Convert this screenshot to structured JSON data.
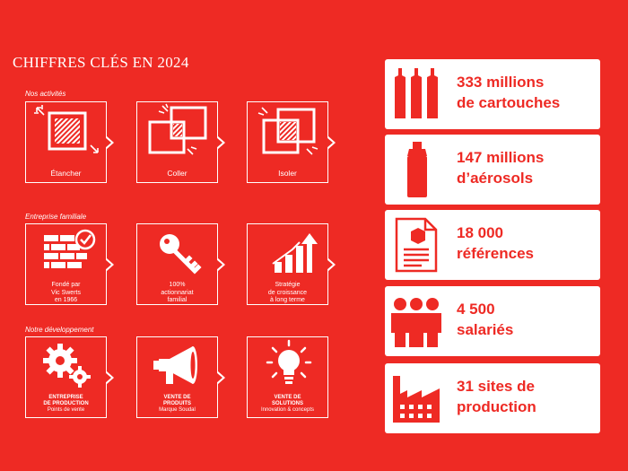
{
  "title": "CHIFFRES CLÉS EN 2024",
  "sections": [
    {
      "label": "Nos activités",
      "tiles": [
        {
          "icon": "sealing-square-icon",
          "lines": [
            "Étancher"
          ]
        },
        {
          "icon": "bonding-squares-icon",
          "lines": [
            "Coller"
          ]
        },
        {
          "icon": "insulating-square-icon",
          "lines": [
            "Isoler"
          ]
        }
      ]
    },
    {
      "label": "Entreprise familiale",
      "tiles": [
        {
          "icon": "brick-wall-check-icon",
          "lines": [
            "Fondé par",
            "Vic Swerts",
            "en 1966"
          ]
        },
        {
          "icon": "key-icon",
          "lines": [
            "100%",
            "actionnariat",
            "familial"
          ]
        },
        {
          "icon": "growth-chart-icon",
          "lines": [
            "Stratégie",
            "de croissance",
            "à long terme"
          ]
        }
      ]
    },
    {
      "label": "Notre développement",
      "tiles": [
        {
          "icon": "gears-icon",
          "lines": [
            "ENTREPRISE",
            "DE PRODUCTION",
            "Points de vente"
          ]
        },
        {
          "icon": "megaphone-icon",
          "lines": [
            "VENTE DE",
            "PRODUITS",
            "Marque Soudal"
          ]
        },
        {
          "icon": "lightbulb-icon",
          "lines": [
            "VENTE DE",
            "SOLUTIONS",
            "Innovation & concepts"
          ]
        }
      ]
    }
  ],
  "stats": [
    {
      "icon": "cartridges-icon",
      "line1": "333 millions",
      "line2": "de cartouches"
    },
    {
      "icon": "aerosol-icon",
      "line1": "147 millions",
      "line2": "d’aérosols"
    },
    {
      "icon": "document-box-icon",
      "line1": "18 000",
      "line2": "références"
    },
    {
      "icon": "people-icon",
      "line1": "4 500",
      "line2": "salariés"
    },
    {
      "icon": "factory-icon",
      "line1": "31 sites de",
      "line2": "production"
    }
  ],
  "colors": {
    "background": "#ee2a24",
    "foreground": "#ffffff"
  }
}
